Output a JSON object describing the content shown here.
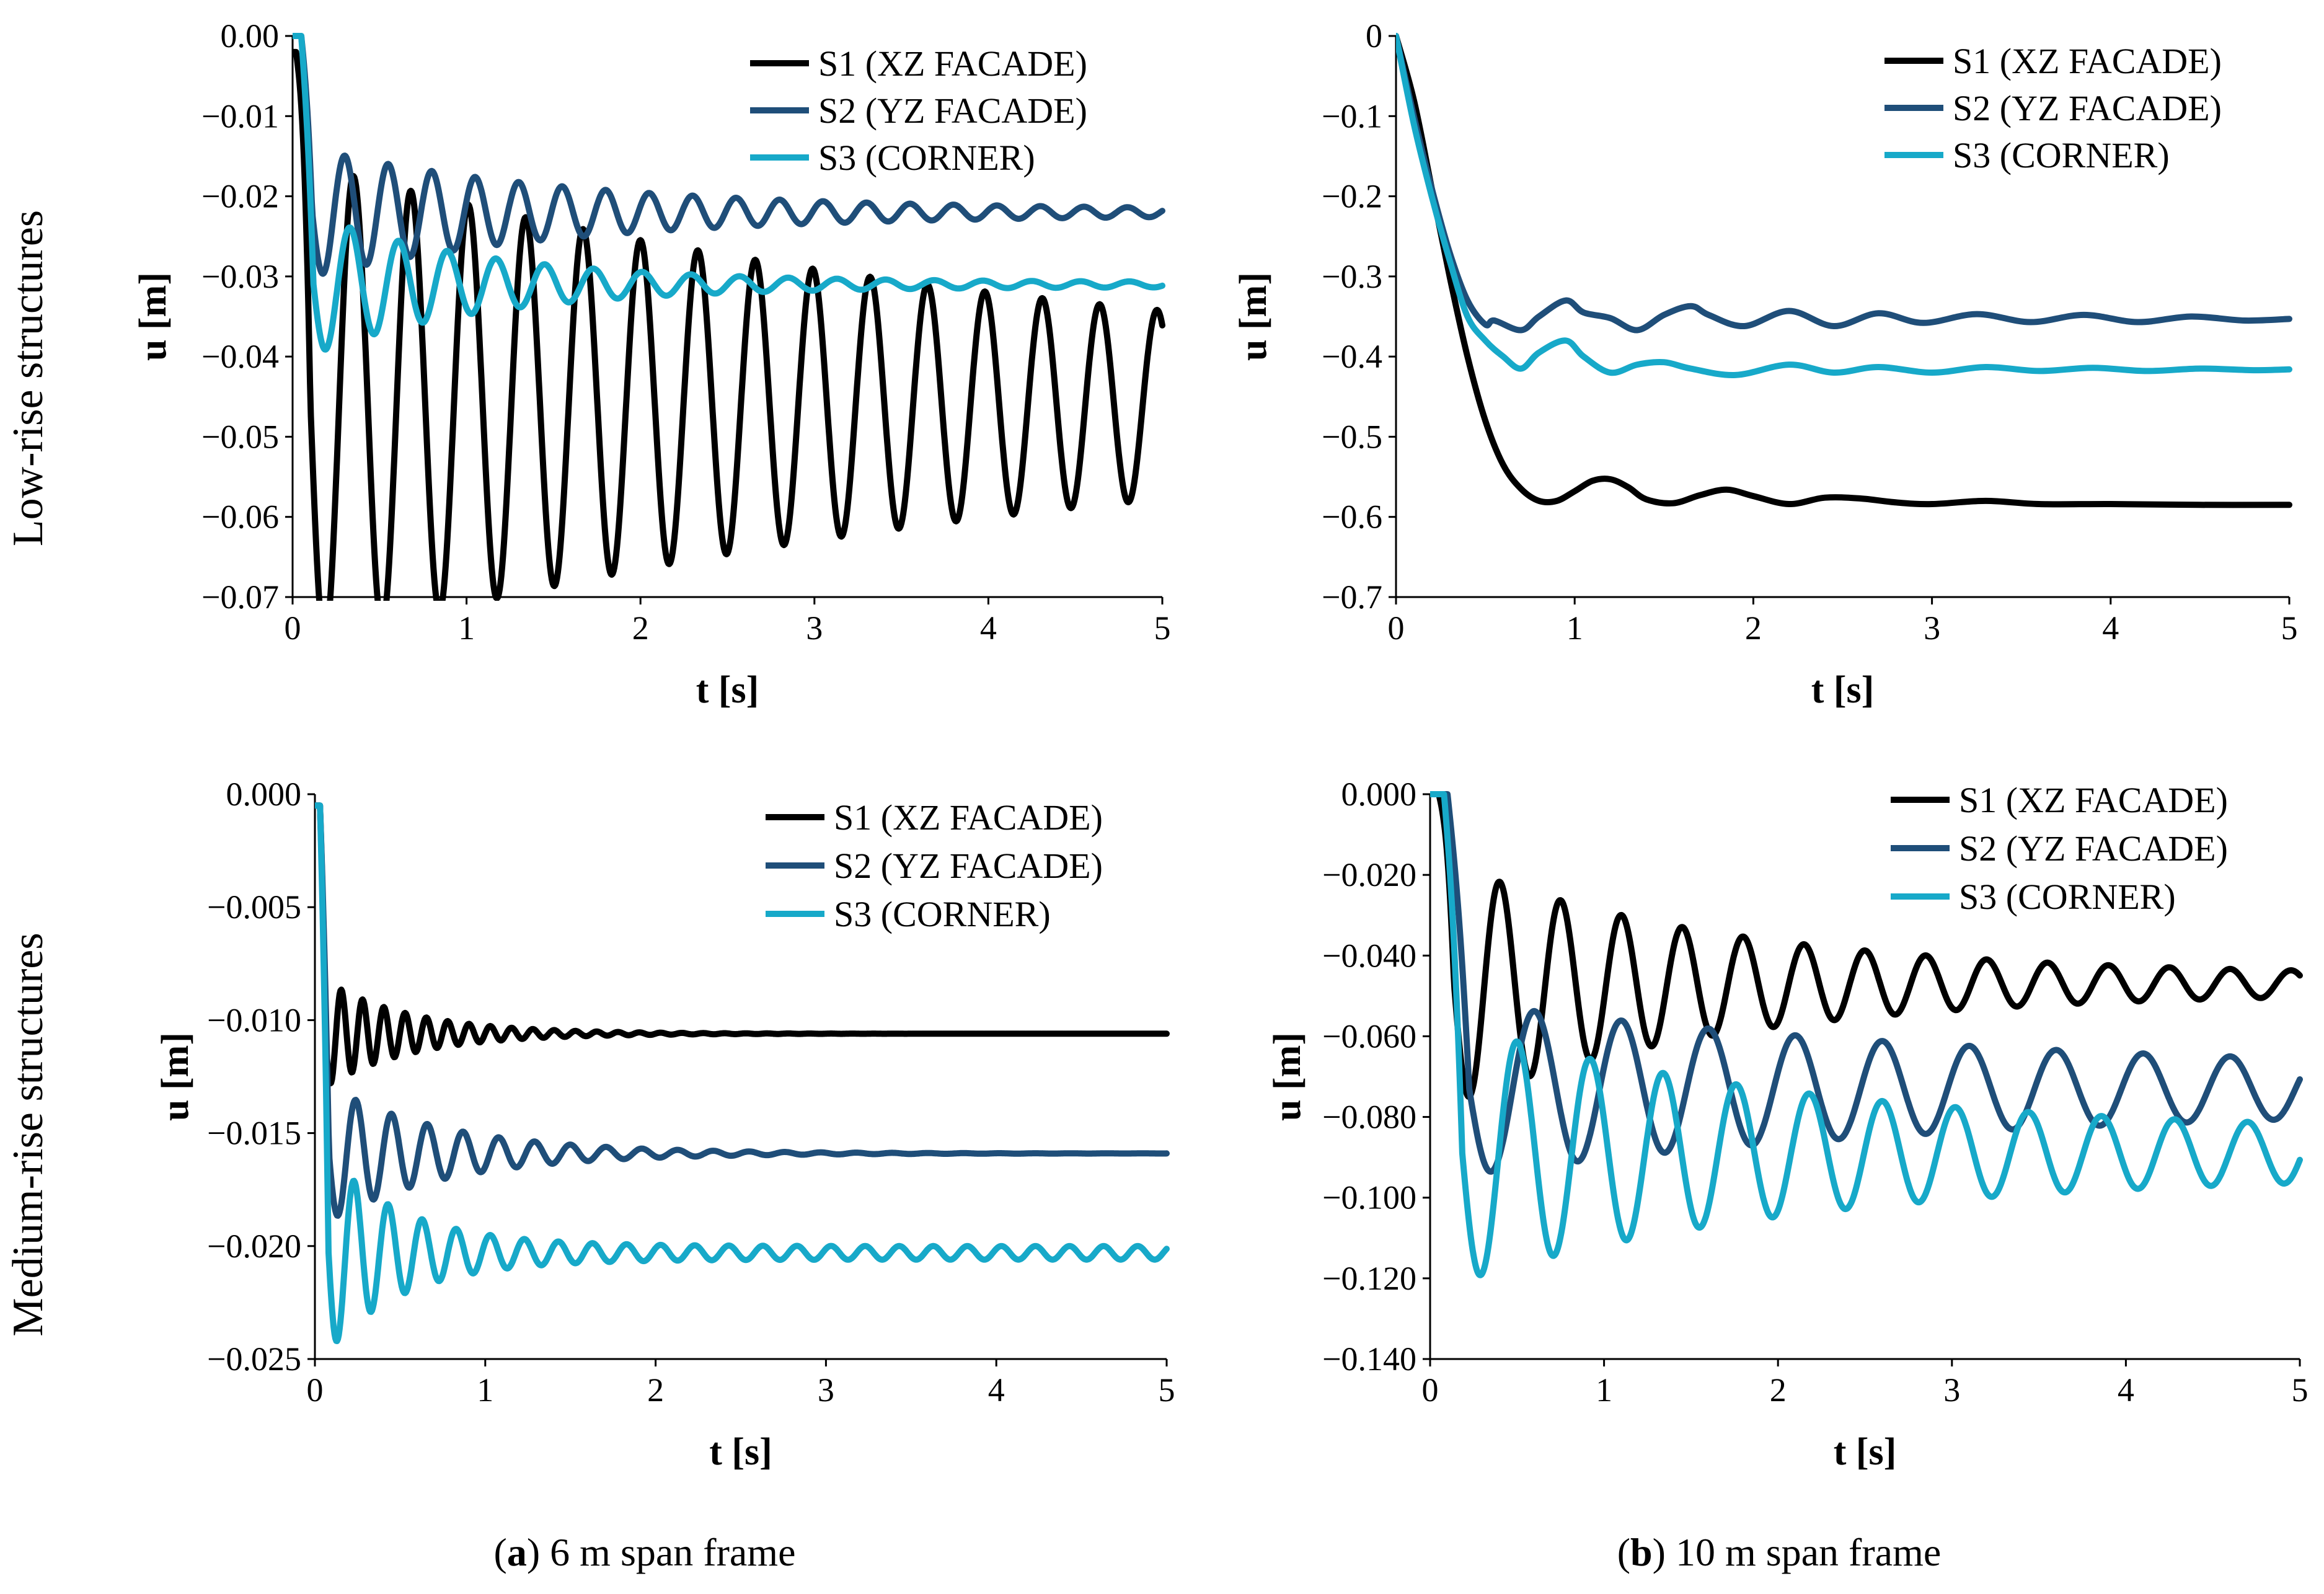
{
  "figure": {
    "row_labels": [
      "Low-rise structures",
      "Medium-rise structures"
    ],
    "captions": [
      {
        "letter": "a",
        "text": " 6 m span frame"
      },
      {
        "letter": "b",
        "text": " 10 m span frame"
      }
    ]
  },
  "colors": {
    "S1": "#000000",
    "S2": "#1f4e79",
    "S3": "#17a9c9"
  },
  "chart_data": [
    {
      "type": "line",
      "panel": "a-low-rise",
      "xlabel": "t [s]",
      "ylabel": "u [m]",
      "xlim": [
        0,
        5
      ],
      "ylim": [
        -0.07,
        0
      ],
      "xticks": [
        0,
        1,
        2,
        3,
        4,
        5
      ],
      "xtick_labels": [
        "0",
        "1",
        "2",
        "3",
        "4",
        "5"
      ],
      "yticks": [
        0,
        -0.01,
        -0.02,
        -0.03,
        -0.04,
        -0.05,
        -0.06,
        -0.07
      ],
      "ytick_labels": [
        "0.00",
        "−0.01",
        "−0.02",
        "−0.03",
        "−0.04",
        "−0.05",
        "−0.06",
        "−0.07"
      ],
      "legend": "top-right",
      "series": [
        {
          "name": "S1 (XZ FACADE)",
          "color": "#000000",
          "kind": "osc",
          "osc": {
            "final": -0.046,
            "start": -0.002,
            "t0": 0.02,
            "period": 0.33,
            "amp0": 0.028,
            "tau": 4.5,
            "floor": 0.0025,
            "phase": 0
          }
        },
        {
          "name": "S2 (YZ FACADE)",
          "color": "#1f4e79",
          "kind": "osc",
          "osc": {
            "final": -0.022,
            "start": 0.0,
            "t0": 0.05,
            "period": 0.25,
            "amp0": 0.008,
            "tau": 1.5,
            "floor": 0.0003,
            "phase": 0
          }
        },
        {
          "name": "S3 (CORNER)",
          "color": "#17a9c9",
          "kind": "osc",
          "osc": {
            "final": -0.031,
            "start": 0.0,
            "t0": 0.05,
            "period": 0.28,
            "amp0": 0.009,
            "tau": 1.0,
            "floor": 0.0003,
            "phase": 0
          }
        }
      ]
    },
    {
      "type": "line",
      "panel": "b-low-rise",
      "xlabel": "t [s]",
      "ylabel": "u [m]",
      "xlim": [
        0,
        5
      ],
      "ylim": [
        -0.7,
        0
      ],
      "xticks": [
        0,
        1,
        2,
        3,
        4,
        5
      ],
      "xtick_labels": [
        "0",
        "1",
        "2",
        "3",
        "4",
        "5"
      ],
      "yticks": [
        0,
        -0.1,
        -0.2,
        -0.3,
        -0.4,
        -0.5,
        -0.6,
        -0.7
      ],
      "ytick_labels": [
        "0",
        "−0.1",
        "−0.2",
        "−0.3",
        "−0.4",
        "−0.5",
        "−0.6",
        "−0.7"
      ],
      "legend": "top-right",
      "series": [
        {
          "name": "S1 (XZ FACADE)",
          "color": "#000000",
          "kind": "points",
          "x": [
            0,
            0.1,
            0.2,
            0.3,
            0.4,
            0.5,
            0.6,
            0.7,
            0.8,
            0.9,
            1.0,
            1.1,
            1.2,
            1.3,
            1.4,
            1.55,
            1.7,
            1.85,
            2.0,
            2.2,
            2.4,
            2.6,
            2.8,
            3.0,
            3.3,
            3.6,
            4.0,
            4.5,
            5.0
          ],
          "y": [
            0,
            -0.08,
            -0.19,
            -0.3,
            -0.4,
            -0.48,
            -0.535,
            -0.565,
            -0.58,
            -0.58,
            -0.568,
            -0.555,
            -0.553,
            -0.563,
            -0.578,
            -0.583,
            -0.573,
            -0.566,
            -0.574,
            -0.584,
            -0.576,
            -0.577,
            -0.582,
            -0.584,
            -0.58,
            -0.584,
            -0.584,
            -0.585,
            -0.585
          ]
        },
        {
          "name": "S2 (YZ FACADE)",
          "color": "#1f4e79",
          "kind": "points",
          "x": [
            0,
            0.1,
            0.2,
            0.3,
            0.4,
            0.5,
            0.55,
            0.7,
            0.8,
            0.95,
            1.05,
            1.2,
            1.35,
            1.5,
            1.65,
            1.75,
            1.95,
            2.2,
            2.45,
            2.7,
            2.95,
            3.25,
            3.55,
            3.85,
            4.15,
            4.45,
            4.75,
            5.0
          ],
          "y": [
            0,
            -0.1,
            -0.19,
            -0.27,
            -0.33,
            -0.36,
            -0.355,
            -0.367,
            -0.35,
            -0.33,
            -0.345,
            -0.352,
            -0.367,
            -0.348,
            -0.337,
            -0.348,
            -0.362,
            -0.343,
            -0.362,
            -0.346,
            -0.358,
            -0.347,
            -0.357,
            -0.348,
            -0.357,
            -0.35,
            -0.355,
            -0.353
          ]
        },
        {
          "name": "S3 (CORNER)",
          "color": "#17a9c9",
          "kind": "points",
          "x": [
            0,
            0.1,
            0.2,
            0.3,
            0.4,
            0.5,
            0.6,
            0.7,
            0.8,
            0.95,
            1.05,
            1.2,
            1.35,
            1.5,
            1.65,
            1.9,
            2.2,
            2.45,
            2.7,
            3.0,
            3.3,
            3.6,
            3.9,
            4.2,
            4.5,
            4.8,
            5.0
          ],
          "y": [
            0,
            -0.11,
            -0.2,
            -0.28,
            -0.35,
            -0.38,
            -0.4,
            -0.415,
            -0.395,
            -0.38,
            -0.4,
            -0.42,
            -0.41,
            -0.407,
            -0.415,
            -0.423,
            -0.41,
            -0.42,
            -0.413,
            -0.42,
            -0.413,
            -0.418,
            -0.414,
            -0.418,
            -0.415,
            -0.417,
            -0.416
          ]
        }
      ]
    },
    {
      "type": "line",
      "panel": "a-medium-rise",
      "xlabel": "t [s]",
      "ylabel": "u [m]",
      "xlim": [
        0,
        5
      ],
      "ylim": [
        -0.025,
        0
      ],
      "xticks": [
        0,
        1,
        2,
        3,
        4,
        5
      ],
      "xtick_labels": [
        "0",
        "1",
        "2",
        "3",
        "4",
        "5"
      ],
      "yticks": [
        0,
        -0.005,
        -0.01,
        -0.015,
        -0.02,
        -0.025
      ],
      "ytick_labels": [
        "0.000",
        "−0.005",
        "−0.010",
        "−0.015",
        "−0.020",
        "−0.025"
      ],
      "legend": "top-right",
      "series": [
        {
          "name": "S1 (XZ FACADE)",
          "color": "#000000",
          "kind": "osc",
          "osc": {
            "final": -0.0106,
            "start": -0.0005,
            "t0": 0.03,
            "period": 0.125,
            "amp0": 0.0025,
            "tau": 0.5,
            "floor": 0.0,
            "phase": 0
          }
        },
        {
          "name": "S2 (YZ FACADE)",
          "color": "#1f4e79",
          "kind": "osc",
          "osc": {
            "final": -0.0159,
            "start": -0.0005,
            "t0": 0.03,
            "period": 0.21,
            "amp0": 0.0032,
            "tau": 0.7,
            "floor": 0.0,
            "phase": 0
          }
        },
        {
          "name": "S3 (CORNER)",
          "color": "#17a9c9",
          "kind": "osc",
          "osc": {
            "final": -0.0203,
            "start": -0.0005,
            "t0": 0.03,
            "period": 0.2,
            "amp0": 0.0045,
            "tau": 0.45,
            "floor": 0.0003,
            "phase": 0
          }
        }
      ]
    },
    {
      "type": "line",
      "panel": "b-medium-rise",
      "xlabel": "t [s]",
      "ylabel": "u [m]",
      "xlim": [
        0,
        5
      ],
      "ylim": [
        -0.14,
        0
      ],
      "xticks": [
        0,
        1,
        2,
        3,
        4,
        5
      ],
      "xtick_labels": [
        "0",
        "1",
        "2",
        "3",
        "4",
        "5"
      ],
      "yticks": [
        0,
        -0.02,
        -0.04,
        -0.06,
        -0.08,
        -0.1,
        -0.12,
        -0.14
      ],
      "ytick_labels": [
        "0.000",
        "−0.020",
        "−0.040",
        "−0.060",
        "−0.080",
        "−0.100",
        "−0.120",
        "−0.140"
      ],
      "legend": "top-right",
      "series": [
        {
          "name": "S1 (XZ FACADE)",
          "color": "#000000",
          "kind": "osc",
          "osc": {
            "final": -0.047,
            "start": 0.0,
            "t0": 0.05,
            "period": 0.35,
            "amp0": 0.029,
            "tau": 1.6,
            "floor": 0.002,
            "phase": 0
          }
        },
        {
          "name": "S2 (YZ FACADE)",
          "color": "#1f4e79",
          "kind": "osc",
          "osc": {
            "final": -0.073,
            "start": 0.0,
            "t0": 0.1,
            "period": 0.5,
            "amp0": 0.018,
            "tau": 3.0,
            "floor": 0.004,
            "phase": 0
          }
        },
        {
          "name": "S3 (CORNER)",
          "color": "#17a9c9",
          "kind": "osc",
          "osc": {
            "final": -0.089,
            "start": 0.0,
            "t0": 0.08,
            "period": 0.42,
            "amp0": 0.028,
            "tau": 2.0,
            "floor": 0.005,
            "phase": 0
          }
        }
      ]
    }
  ]
}
